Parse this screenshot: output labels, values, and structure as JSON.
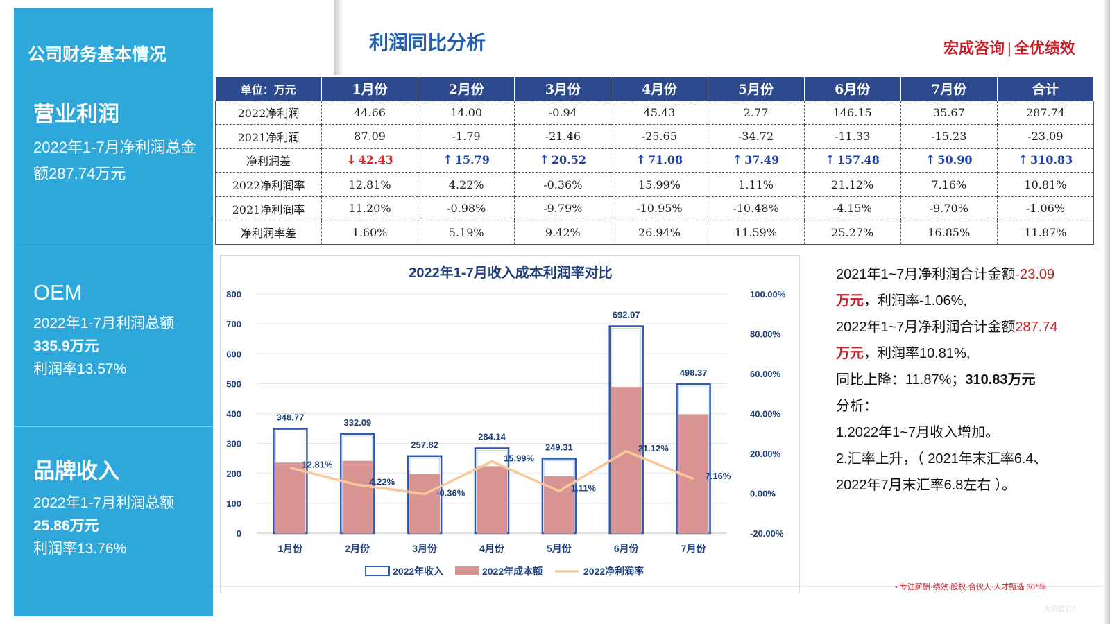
{
  "sidebar": {
    "title": "公司财务基本情况",
    "sections": [
      {
        "heading": "营业利润",
        "lines": [
          "2022年1-7月净利润总金额287.74万元"
        ]
      },
      {
        "heading": "OEM",
        "lines": [
          "2022年1-7月利润总额",
          "335.9万元",
          "利润率13.57%"
        ]
      },
      {
        "heading": "品牌收入",
        "lines": [
          "2022年1-7月利润总额",
          "25.86万元",
          "利润率13.76%"
        ]
      }
    ]
  },
  "header": {
    "title": "利润同比分析",
    "brand_left": "宏成咨询",
    "brand_sep": "|",
    "brand_right": "全优绩效"
  },
  "table": {
    "unit_label": "单位：万元",
    "columns": [
      "1月份",
      "2月份",
      "3月份",
      "4月份",
      "5月份",
      "6月份",
      "7月份",
      "合计"
    ],
    "rows": [
      {
        "label": "2022净利润",
        "values": [
          "44.66",
          "14.00",
          "-0.94",
          "45.43",
          "2.77",
          "146.15",
          "35.67",
          "287.74"
        ]
      },
      {
        "label": "2021净利润",
        "values": [
          "87.09",
          "-1.79",
          "-21.46",
          "-25.65",
          "-34.72",
          "-11.33",
          "-15.23",
          "-23.09"
        ]
      },
      {
        "label": "净利润差",
        "values": [
          "42.43",
          "15.79",
          "20.52",
          "71.08",
          "37.49",
          "157.48",
          "50.90",
          "310.83"
        ],
        "directions": [
          "down",
          "up",
          "up",
          "up",
          "up",
          "up",
          "up",
          "up"
        ]
      },
      {
        "label": "2022净利润率",
        "values": [
          "12.81%",
          "4.22%",
          "-0.36%",
          "15.99%",
          "1.11%",
          "21.12%",
          "7.16%",
          "10.81%"
        ]
      },
      {
        "label": "2021净利润率",
        "values": [
          "11.20%",
          "-0.98%",
          "-9.79%",
          "-10.95%",
          "-10.48%",
          "-4.15%",
          "-9.70%",
          "-1.06%"
        ]
      },
      {
        "label": "净利润率差",
        "values": [
          "1.60%",
          "5.19%",
          "9.42%",
          "26.94%",
          "11.59%",
          "25.27%",
          "16.85%",
          "11.87%"
        ]
      }
    ]
  },
  "chart_data": {
    "type": "bar",
    "title": "2022年1-7月收入成本利润率对比",
    "categories": [
      "1月份",
      "2月份",
      "3月份",
      "4月份",
      "5月份",
      "6月份",
      "7月份"
    ],
    "series": [
      {
        "name": "2022年收入",
        "type": "bar",
        "values": [
          348.77,
          332.09,
          257.82,
          284.14,
          249.31,
          692.07,
          498.37
        ],
        "color": "#2e5ab4"
      },
      {
        "name": "2022年成本额",
        "type": "bar",
        "values": [
          236,
          242,
          198,
          224,
          190,
          489,
          398
        ],
        "color": "#d99594"
      },
      {
        "name": "2022净利润率",
        "type": "line",
        "axis": "right",
        "values": [
          12.81,
          4.22,
          -0.36,
          15.99,
          1.11,
          21.12,
          7.16
        ],
        "color": "#f8c89a"
      }
    ],
    "revenue_labels": [
      "348.77",
      "332.09",
      "257.82",
      "284.14",
      "249.31",
      "692.07",
      "498.37"
    ],
    "rate_labels": [
      "12.81%",
      "4.22%",
      "-0.36%",
      "15.99%",
      "1.11%",
      "21.12%",
      "7.16%"
    ],
    "y_left": {
      "min": 0,
      "max": 800,
      "ticks": [
        "0",
        "100",
        "200",
        "300",
        "400",
        "500",
        "600",
        "700",
        "800"
      ]
    },
    "y_right": {
      "min": -20,
      "max": 100,
      "ticks": [
        "-20.00%",
        "0.00%",
        "20.00%",
        "40.00%",
        "60.00%",
        "80.00%",
        "100.00%"
      ]
    },
    "legend_position": "bottom",
    "grid": true
  },
  "analysis": {
    "p1_a": "2021年1~7月净利润合计金额",
    "p1_b": "-23.09",
    "p1_c": "万元",
    "p1_d": "，利润率-1.06%,",
    "p2_a": "2022年1~7月净利润合计金额",
    "p2_b": "287.74",
    "p2_c": "万元",
    "p2_d": "，利润率10.81%,",
    "p3_a": "同比上降：11.87%；",
    "p3_b": "310.83万元",
    "p4": "分析：",
    "p5": "1.2022年1~7月收入增加。",
    "p6": "2.汇率上升，（ 2021年末汇率6.4、",
    "p7": "2022年7月末汇率6.8左右 ）。"
  },
  "footer": {
    "slogan": "•  专注薪酬·绩效·股权·合伙人·人才甄选  30⁺年",
    "watermark": "为何是它？"
  }
}
